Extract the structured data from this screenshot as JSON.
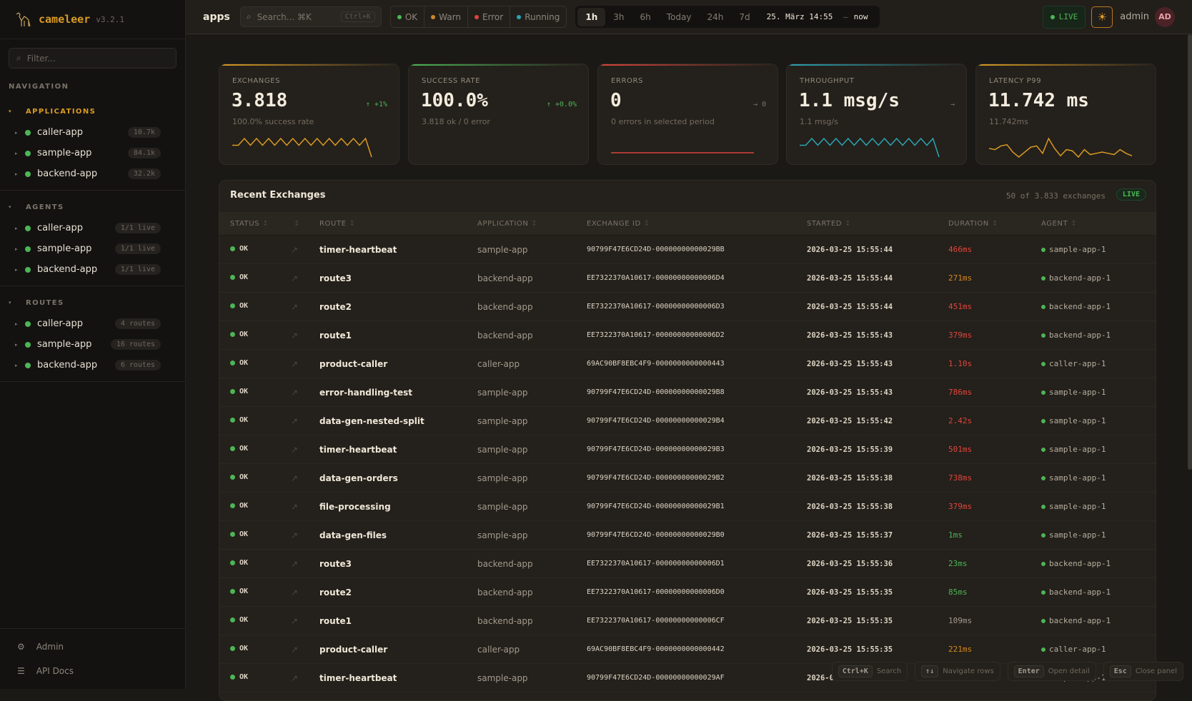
{
  "brand": {
    "name": "cameleer",
    "version": "v3.2.1"
  },
  "sidebar": {
    "filter_placeholder": "Filter...",
    "nav_label": "NAVIGATION",
    "sections": [
      {
        "title": "APPLICATIONS",
        "active": true,
        "items": [
          {
            "label": "caller-app",
            "badge": "10.7k"
          },
          {
            "label": "sample-app",
            "badge": "84.1k"
          },
          {
            "label": "backend-app",
            "badge": "32.2k"
          }
        ]
      },
      {
        "title": "AGENTS",
        "active": false,
        "items": [
          {
            "label": "caller-app",
            "badge": "1/1 live"
          },
          {
            "label": "sample-app",
            "badge": "1/1 live"
          },
          {
            "label": "backend-app",
            "badge": "1/1 live"
          }
        ]
      },
      {
        "title": "ROUTES",
        "active": false,
        "items": [
          {
            "label": "caller-app",
            "badge": "4 routes"
          },
          {
            "label": "sample-app",
            "badge": "16 routes"
          },
          {
            "label": "backend-app",
            "badge": "6 routes"
          }
        ]
      }
    ],
    "footer": [
      {
        "label": "Admin",
        "icon": "gear-icon"
      },
      {
        "label": "API Docs",
        "icon": "menu-icon"
      }
    ]
  },
  "topbar": {
    "breadcrumb": "apps",
    "search_placeholder": "Search... ⌘K",
    "search_shortcut": "Ctrl+K",
    "status_filters": [
      {
        "label": "OK",
        "color": "#4cb556"
      },
      {
        "label": "Warn",
        "color": "#c98a22"
      },
      {
        "label": "Error",
        "color": "#d9463c"
      },
      {
        "label": "Running",
        "color": "#2aa4b4"
      }
    ],
    "time_ranges": [
      "1h",
      "3h",
      "6h",
      "Today",
      "24h",
      "7d"
    ],
    "selected_range": "1h",
    "range_from": "25. März 14:55",
    "range_sep": "–",
    "range_to": "now",
    "live_label": "LIVE",
    "theme_icon": "☀",
    "user": "admin",
    "avatar": "AD"
  },
  "kpis": [
    {
      "label": "EXCHANGES",
      "value": "3.818",
      "trend": "↑ +1%",
      "trend_color": "#4cb556",
      "sub": "100.0% success rate",
      "color": "#d99a23",
      "spark": [
        2,
        2,
        10,
        2,
        10,
        2,
        10,
        2,
        10,
        2,
        10,
        2,
        10,
        2,
        10,
        2,
        10,
        2,
        10,
        2,
        10,
        2,
        10,
        -12
      ]
    },
    {
      "label": "SUCCESS RATE",
      "value": "100.0%",
      "trend": "↑ +0.0%",
      "trend_color": "#4cb556",
      "sub": "3.818 ok / 0 error",
      "color": "#4cb556",
      "spark": []
    },
    {
      "label": "ERRORS",
      "value": "0",
      "trend": "→ 0",
      "trend_color": "#7a7266",
      "sub": "0 errors in selected period",
      "color": "#d9463c",
      "spark": [
        0,
        0
      ]
    },
    {
      "label": "THROUGHPUT",
      "value": "1.1 msg/s",
      "trend": "→",
      "trend_color": "#7a7266",
      "sub": "1.1 msg/s",
      "color": "#2aa4b4",
      "spark": [
        2,
        2,
        10,
        2,
        10,
        2,
        10,
        2,
        10,
        2,
        10,
        2,
        10,
        2,
        10,
        2,
        10,
        2,
        10,
        2,
        10,
        2,
        10,
        -12
      ]
    },
    {
      "label": "LATENCY P99",
      "value": "11.742 ms",
      "trend": "",
      "trend_color": "#7a7266",
      "sub": "11.742ms",
      "color": "#d99a23",
      "spark": [
        4,
        3,
        6,
        7,
        1,
        -3,
        1,
        5,
        6,
        0,
        12,
        4,
        -2,
        3,
        2,
        -3,
        3,
        -1,
        0,
        1,
        0,
        -1,
        3,
        0,
        -2
      ]
    }
  ],
  "exchanges": {
    "title": "Recent Exchanges",
    "count": "50 of 3.833 exchanges",
    "live": "LIVE",
    "columns": [
      "STATUS",
      "",
      "ROUTE",
      "APPLICATION",
      "EXCHANGE ID",
      "STARTED",
      "DURATION",
      "AGENT"
    ],
    "sort_icon": "↕",
    "rows": [
      {
        "status": "OK",
        "route": "timer-heartbeat",
        "app": "sample-app",
        "id": "90799F47E6CD24D-00000000000029BB",
        "started": "2026-03-25 15:55:44",
        "duration": "466ms",
        "dur_color": "#e0463c",
        "agent": "sample-app-1"
      },
      {
        "status": "OK",
        "route": "route3",
        "app": "backend-app",
        "id": "EE7322370A10617-00000000000006D4",
        "started": "2026-03-25 15:55:44",
        "duration": "271ms",
        "dur_color": "#d48a1e",
        "agent": "backend-app-1"
      },
      {
        "status": "OK",
        "route": "route2",
        "app": "backend-app",
        "id": "EE7322370A10617-00000000000006D3",
        "started": "2026-03-25 15:55:44",
        "duration": "451ms",
        "dur_color": "#e0463c",
        "agent": "backend-app-1"
      },
      {
        "status": "OK",
        "route": "route1",
        "app": "backend-app",
        "id": "EE7322370A10617-00000000000006D2",
        "started": "2026-03-25 15:55:43",
        "duration": "379ms",
        "dur_color": "#e0463c",
        "agent": "backend-app-1"
      },
      {
        "status": "OK",
        "route": "product-caller",
        "app": "caller-app",
        "id": "69AC90BF8EBC4F9-0000000000000443",
        "started": "2026-03-25 15:55:43",
        "duration": "1.10s",
        "dur_color": "#e0463c",
        "agent": "caller-app-1"
      },
      {
        "status": "OK",
        "route": "error-handling-test",
        "app": "sample-app",
        "id": "90799F47E6CD24D-00000000000029B8",
        "started": "2026-03-25 15:55:43",
        "duration": "786ms",
        "dur_color": "#e0463c",
        "agent": "sample-app-1"
      },
      {
        "status": "OK",
        "route": "data-gen-nested-split",
        "app": "sample-app",
        "id": "90799F47E6CD24D-00000000000029B4",
        "started": "2026-03-25 15:55:42",
        "duration": "2.42s",
        "dur_color": "#e0463c",
        "agent": "sample-app-1"
      },
      {
        "status": "OK",
        "route": "timer-heartbeat",
        "app": "sample-app",
        "id": "90799F47E6CD24D-00000000000029B3",
        "started": "2026-03-25 15:55:39",
        "duration": "501ms",
        "dur_color": "#e0463c",
        "agent": "sample-app-1"
      },
      {
        "status": "OK",
        "route": "data-gen-orders",
        "app": "sample-app",
        "id": "90799F47E6CD24D-00000000000029B2",
        "started": "2026-03-25 15:55:38",
        "duration": "738ms",
        "dur_color": "#e0463c",
        "agent": "sample-app-1"
      },
      {
        "status": "OK",
        "route": "file-processing",
        "app": "sample-app",
        "id": "90799F47E6CD24D-00000000000029B1",
        "started": "2026-03-25 15:55:38",
        "duration": "379ms",
        "dur_color": "#e0463c",
        "agent": "sample-app-1"
      },
      {
        "status": "OK",
        "route": "data-gen-files",
        "app": "sample-app",
        "id": "90799F47E6CD24D-00000000000029B0",
        "started": "2026-03-25 15:55:37",
        "duration": "1ms",
        "dur_color": "#4cb556",
        "agent": "sample-app-1"
      },
      {
        "status": "OK",
        "route": "route3",
        "app": "backend-app",
        "id": "EE7322370A10617-00000000000006D1",
        "started": "2026-03-25 15:55:36",
        "duration": "23ms",
        "dur_color": "#4cb556",
        "agent": "backend-app-1"
      },
      {
        "status": "OK",
        "route": "route2",
        "app": "backend-app",
        "id": "EE7322370A10617-00000000000006D0",
        "started": "2026-03-25 15:55:35",
        "duration": "85ms",
        "dur_color": "#4cb556",
        "agent": "backend-app-1"
      },
      {
        "status": "OK",
        "route": "route1",
        "app": "backend-app",
        "id": "EE7322370A10617-00000000000006CF",
        "started": "2026-03-25 15:55:35",
        "duration": "109ms",
        "dur_color": "#a39b8e",
        "agent": "backend-app-1"
      },
      {
        "status": "OK",
        "route": "product-caller",
        "app": "caller-app",
        "id": "69AC90BF8EBC4F9-0000000000000442",
        "started": "2026-03-25 15:55:35",
        "duration": "221ms",
        "dur_color": "#d48a1e",
        "agent": "caller-app-1"
      },
      {
        "status": "OK",
        "route": "timer-heartbeat",
        "app": "sample-app",
        "id": "90799F47E6CD24D-00000000000029AF",
        "started": "2026-03-25 1",
        "duration": "",
        "dur_color": "#a39b8e",
        "agent": "sample-app-1"
      }
    ]
  },
  "hints": [
    {
      "key": "Ctrl+K",
      "label": "Search"
    },
    {
      "key": "↑↓",
      "label": "Navigate rows"
    },
    {
      "key": "Enter",
      "label": "Open detail"
    },
    {
      "key": "Esc",
      "label": "Close panel"
    }
  ]
}
